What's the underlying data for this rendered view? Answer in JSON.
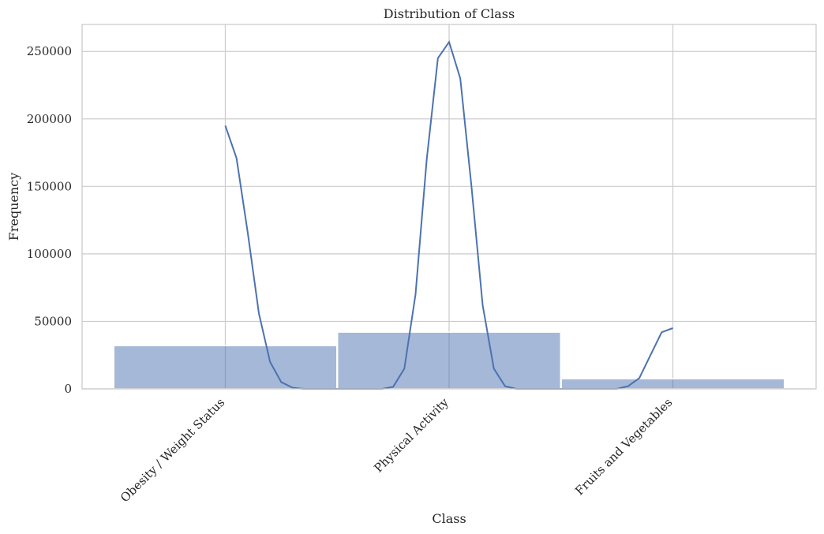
{
  "chart_data": {
    "type": "bar",
    "title": "Distribution of Class",
    "xlabel": "Class",
    "ylabel": "Frequency",
    "categories": [
      "Obesity / Weight Status",
      "Physical Activity",
      "Fruits and Vegetables"
    ],
    "values": [
      32000,
      42000,
      7500
    ],
    "ylim": [
      0,
      270000
    ],
    "yticks": [
      0,
      50000,
      100000,
      150000,
      200000,
      250000
    ],
    "ytick_labels": [
      "0",
      "50000",
      "100000",
      "150000",
      "200000",
      "250000"
    ],
    "grid": true,
    "kde": {
      "x": [
        0,
        0.05,
        0.1,
        0.15,
        0.2,
        0.25,
        0.3,
        0.35,
        0.4,
        0.45,
        0.5,
        0.55,
        0.6,
        0.65,
        0.7,
        0.75,
        0.8,
        0.85,
        0.9,
        0.95,
        1.0,
        1.05,
        1.1,
        1.15,
        1.2,
        1.25,
        1.3,
        1.35,
        1.4,
        1.45,
        1.5,
        1.55,
        1.6,
        1.65,
        1.7,
        1.75,
        1.8,
        1.85,
        1.9,
        1.95,
        2.0
      ],
      "y": [
        195000,
        171000,
        116000,
        56000,
        20000,
        5000,
        900,
        0,
        0,
        0,
        0,
        0,
        0,
        0,
        0,
        1500,
        15000,
        70000,
        170000,
        245000,
        257000,
        230000,
        150000,
        62000,
        15000,
        2000,
        0,
        0,
        0,
        0,
        0,
        0,
        0,
        0,
        0,
        0,
        2000,
        8000,
        25000,
        42000,
        45000
      ]
    },
    "colors": {
      "bar": "#4c72b0",
      "line": "#4c72b0",
      "grid": "#cccccc"
    }
  }
}
